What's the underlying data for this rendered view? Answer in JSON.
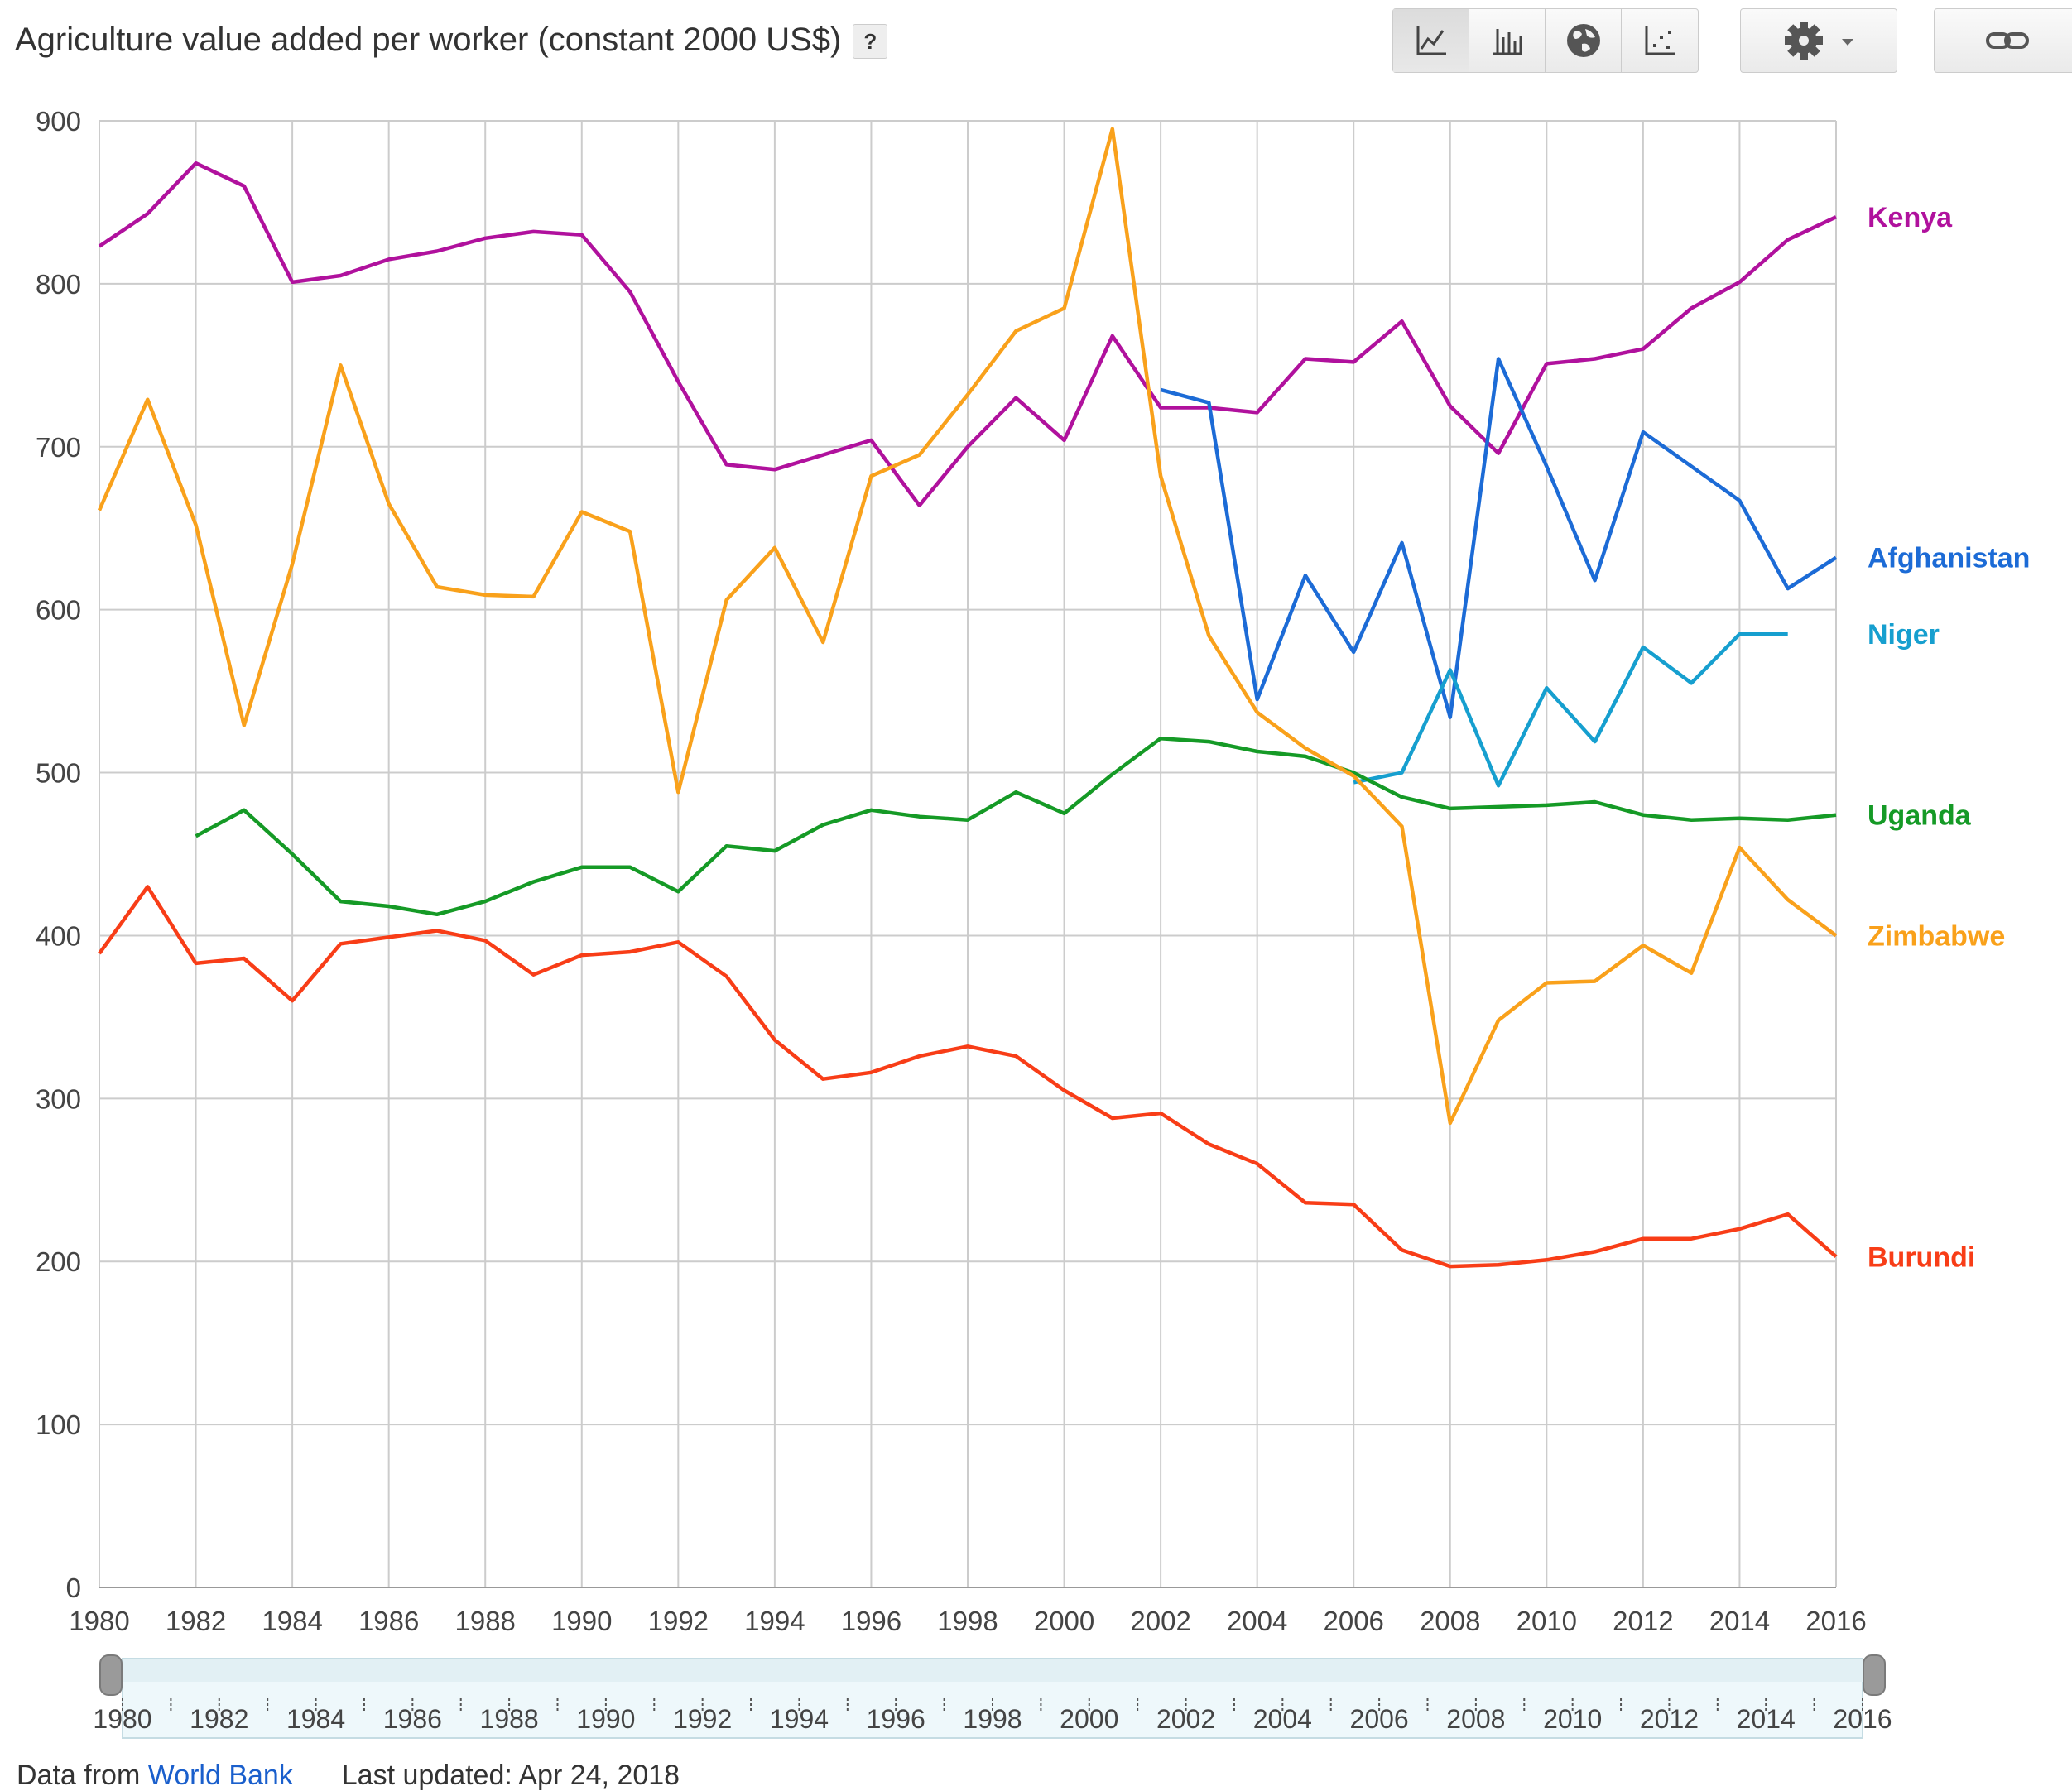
{
  "header": {
    "title": "Agriculture value added per worker (constant 2000 US$)",
    "help_label": "?"
  },
  "toolbar": {
    "views": [
      {
        "name": "line-chart",
        "icon": "line-chart-icon",
        "active": true
      },
      {
        "name": "bar-chart",
        "icon": "bar-chart-icon",
        "active": false
      },
      {
        "name": "map",
        "icon": "globe-icon",
        "active": false
      },
      {
        "name": "scatter",
        "icon": "scatter-icon",
        "active": false
      }
    ],
    "settings_icon": "gear-icon",
    "link_icon": "link-icon"
  },
  "footer": {
    "data_from": "Data from",
    "source": "World Bank",
    "updated": "Last updated: Apr 24, 2018"
  },
  "timeline": {
    "start": 1980,
    "end": 2016,
    "start_label": "1980",
    "end_label": "2016"
  },
  "chart_data": {
    "type": "line",
    "title": "Agriculture value added per worker (constant 2000 US$)",
    "xlabel": "",
    "ylabel": "",
    "xlim": [
      1980,
      2016
    ],
    "ylim": [
      0,
      900
    ],
    "yticks": [
      0,
      100,
      200,
      300,
      400,
      500,
      600,
      700,
      800,
      900
    ],
    "xticks": [
      1980,
      1982,
      1984,
      1986,
      1988,
      1990,
      1992,
      1994,
      1996,
      1998,
      2000,
      2002,
      2004,
      2006,
      2008,
      2010,
      2012,
      2014,
      2016
    ],
    "grid": true,
    "series": [
      {
        "name": "Kenya",
        "color": "#b0119d",
        "start": 1980,
        "values": [
          823,
          843,
          874,
          860,
          801,
          805,
          815,
          820,
          828,
          832,
          830,
          795,
          740,
          689,
          686,
          695,
          704,
          664,
          700,
          730,
          704,
          768,
          724,
          724,
          721,
          754,
          752,
          777,
          725,
          696,
          751,
          754,
          760,
          785,
          801,
          827,
          841
        ]
      },
      {
        "name": "Afghanistan",
        "color": "#1c6bd6",
        "start": 2002,
        "values": [
          735,
          727,
          545,
          621,
          574,
          641,
          534,
          754,
          688,
          618,
          709,
          688,
          667,
          613,
          632
        ]
      },
      {
        "name": "Niger",
        "color": "#169fcf",
        "start": 2006,
        "values": [
          494,
          500,
          563,
          492,
          552,
          519,
          577,
          555,
          585,
          585
        ]
      },
      {
        "name": "Uganda",
        "color": "#159a26",
        "start": 1982,
        "values": [
          461,
          477,
          450,
          421,
          418,
          413,
          421,
          433,
          442,
          442,
          427,
          455,
          452,
          468,
          477,
          473,
          471,
          488,
          475,
          499,
          521,
          519,
          513,
          510,
          500,
          485,
          478,
          479,
          480,
          482,
          474,
          471,
          472,
          471,
          474
        ]
      },
      {
        "name": "Zimbabwe",
        "color": "#f9a11b",
        "start": 1980,
        "values": [
          661,
          729,
          652,
          529,
          628,
          750,
          665,
          614,
          609,
          608,
          660,
          648,
          488,
          606,
          638,
          580,
          682,
          695,
          732,
          771,
          785,
          895,
          682,
          584,
          537,
          515,
          498,
          467,
          285,
          348,
          371,
          372,
          394,
          377,
          454,
          422,
          400
        ]
      },
      {
        "name": "Burundi",
        "color": "#f83d17",
        "start": 1980,
        "values": [
          389,
          430,
          383,
          386,
          360,
          395,
          399,
          403,
          397,
          376,
          388,
          390,
          396,
          375,
          336,
          312,
          316,
          326,
          332,
          326,
          305,
          288,
          291,
          272,
          260,
          236,
          235,
          207,
          197,
          198,
          201,
          206,
          214,
          214,
          220,
          229,
          203
        ]
      }
    ]
  }
}
